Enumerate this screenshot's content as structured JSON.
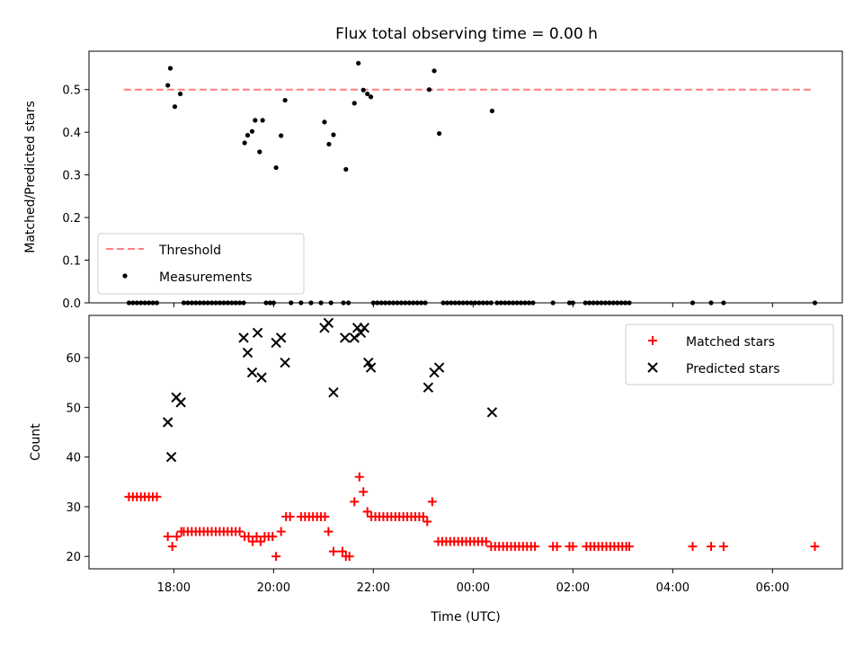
{
  "chart_data": [
    {
      "type": "scatter",
      "title": "Flux total observing time = 0.00 h",
      "xlabel": "",
      "ylabel": "Matched/Predicted stars",
      "ylim": [
        0,
        0.59
      ],
      "yticks": [
        0.0,
        0.1,
        0.2,
        0.3,
        0.4,
        0.5
      ],
      "ytick_labels": [
        "0.0",
        "0.1",
        "0.2",
        "0.3",
        "0.4",
        "0.5"
      ],
      "xlim": [
        16.3,
        31.4
      ],
      "xticks": [
        18,
        20,
        22,
        24,
        26,
        28,
        30
      ],
      "legend_placement": "lower-left",
      "threshold": {
        "name": "Threshold",
        "y": 0.5,
        "x_range": [
          17.0,
          30.8
        ],
        "color": "#ff7f7f",
        "style": "dashed"
      },
      "series": [
        {
          "name": "Measurements",
          "color": "#000000",
          "marker": "dot",
          "points": [
            [
              17.1,
              0
            ],
            [
              17.18,
              0
            ],
            [
              17.26,
              0
            ],
            [
              17.34,
              0
            ],
            [
              17.42,
              0
            ],
            [
              17.5,
              0
            ],
            [
              17.58,
              0
            ],
            [
              17.66,
              0
            ],
            [
              17.88,
              0.51
            ],
            [
              17.93,
              0.55
            ],
            [
              18.02,
              0.46
            ],
            [
              18.13,
              0.49
            ],
            [
              18.2,
              0
            ],
            [
              18.28,
              0
            ],
            [
              18.36,
              0
            ],
            [
              18.44,
              0
            ],
            [
              18.52,
              0
            ],
            [
              18.6,
              0
            ],
            [
              18.68,
              0
            ],
            [
              18.76,
              0
            ],
            [
              18.84,
              0
            ],
            [
              18.92,
              0
            ],
            [
              19.0,
              0
            ],
            [
              19.08,
              0
            ],
            [
              19.16,
              0
            ],
            [
              19.24,
              0
            ],
            [
              19.32,
              0
            ],
            [
              19.4,
              0
            ],
            [
              19.42,
              0.375
            ],
            [
              19.48,
              0.393
            ],
            [
              19.57,
              0.402
            ],
            [
              19.63,
              0.428
            ],
            [
              19.72,
              0.354
            ],
            [
              19.78,
              0.428
            ],
            [
              19.85,
              0
            ],
            [
              19.93,
              0
            ],
            [
              20.0,
              0
            ],
            [
              20.05,
              0.317
            ],
            [
              20.15,
              0.392
            ],
            [
              20.23,
              0.475
            ],
            [
              20.35,
              0
            ],
            [
              20.55,
              0
            ],
            [
              20.75,
              0
            ],
            [
              20.95,
              0
            ],
            [
              21.15,
              0
            ],
            [
              21.02,
              0.424
            ],
            [
              21.11,
              0.372
            ],
            [
              21.2,
              0.394
            ],
            [
              21.45,
              0.313
            ],
            [
              21.4,
              0
            ],
            [
              21.5,
              0
            ],
            [
              21.62,
              0.468
            ],
            [
              21.7,
              0.562
            ],
            [
              21.8,
              0.499
            ],
            [
              21.88,
              0.49
            ],
            [
              21.95,
              0.483
            ],
            [
              22.0,
              0
            ],
            [
              22.08,
              0
            ],
            [
              22.16,
              0
            ],
            [
              22.24,
              0
            ],
            [
              22.32,
              0
            ],
            [
              22.4,
              0
            ],
            [
              22.48,
              0
            ],
            [
              22.56,
              0
            ],
            [
              22.64,
              0
            ],
            [
              22.72,
              0
            ],
            [
              22.8,
              0
            ],
            [
              22.88,
              0
            ],
            [
              22.96,
              0
            ],
            [
              23.04,
              0
            ],
            [
              23.12,
              0.5
            ],
            [
              23.22,
              0.544
            ],
            [
              23.32,
              0.397
            ],
            [
              23.4,
              0
            ],
            [
              23.48,
              0
            ],
            [
              23.56,
              0
            ],
            [
              23.64,
              0
            ],
            [
              23.72,
              0
            ],
            [
              23.8,
              0
            ],
            [
              23.88,
              0
            ],
            [
              23.96,
              0
            ],
            [
              24.04,
              0
            ],
            [
              24.12,
              0
            ],
            [
              24.2,
              0
            ],
            [
              24.28,
              0
            ],
            [
              24.36,
              0
            ],
            [
              24.38,
              0.45
            ],
            [
              24.48,
              0
            ],
            [
              24.56,
              0
            ],
            [
              24.64,
              0
            ],
            [
              24.72,
              0
            ],
            [
              24.8,
              0
            ],
            [
              24.88,
              0
            ],
            [
              24.96,
              0
            ],
            [
              25.04,
              0
            ],
            [
              25.12,
              0
            ],
            [
              25.2,
              0
            ],
            [
              25.6,
              0
            ],
            [
              25.93,
              0
            ],
            [
              26.0,
              0
            ],
            [
              26.25,
              0
            ],
            [
              26.33,
              0
            ],
            [
              26.41,
              0
            ],
            [
              26.49,
              0
            ],
            [
              26.57,
              0
            ],
            [
              26.65,
              0
            ],
            [
              26.73,
              0
            ],
            [
              26.81,
              0
            ],
            [
              26.89,
              0
            ],
            [
              26.97,
              0
            ],
            [
              27.05,
              0
            ],
            [
              27.13,
              0
            ],
            [
              28.4,
              0
            ],
            [
              28.77,
              0
            ],
            [
              29.02,
              0
            ],
            [
              30.85,
              0
            ]
          ]
        }
      ]
    },
    {
      "type": "scatter",
      "title": "",
      "xlabel": "Time (UTC)",
      "ylabel": "Count",
      "ylim": [
        17.5,
        68.5
      ],
      "yticks": [
        20,
        30,
        40,
        50,
        60
      ],
      "ytick_labels": [
        "20",
        "30",
        "40",
        "50",
        "60"
      ],
      "xlim": [
        16.3,
        31.4
      ],
      "xticks": [
        18,
        20,
        22,
        24,
        26,
        28,
        30
      ],
      "xtick_labels": [
        "18:00",
        "20:00",
        "22:00",
        "00:00",
        "02:00",
        "04:00",
        "06:00"
      ],
      "legend_placement": "top-right",
      "series": [
        {
          "name": "Matched stars",
          "color": "#ff0000",
          "marker": "plus",
          "points": [
            [
              17.1,
              32
            ],
            [
              17.18,
              32
            ],
            [
              17.26,
              32
            ],
            [
              17.34,
              32
            ],
            [
              17.42,
              32
            ],
            [
              17.5,
              32
            ],
            [
              17.58,
              32
            ],
            [
              17.66,
              32
            ],
            [
              17.88,
              24
            ],
            [
              17.97,
              22
            ],
            [
              18.06,
              24
            ],
            [
              18.15,
              25
            ],
            [
              18.2,
              25
            ],
            [
              18.28,
              25
            ],
            [
              18.36,
              25
            ],
            [
              18.44,
              25
            ],
            [
              18.52,
              25
            ],
            [
              18.6,
              25
            ],
            [
              18.68,
              25
            ],
            [
              18.76,
              25
            ],
            [
              18.84,
              25
            ],
            [
              18.92,
              25
            ],
            [
              19.0,
              25
            ],
            [
              19.08,
              25
            ],
            [
              19.16,
              25
            ],
            [
              19.24,
              25
            ],
            [
              19.32,
              25
            ],
            [
              19.42,
              24
            ],
            [
              19.5,
              24
            ],
            [
              19.58,
              23
            ],
            [
              19.66,
              24
            ],
            [
              19.74,
              23
            ],
            [
              19.82,
              24
            ],
            [
              19.9,
              24
            ],
            [
              19.98,
              24
            ],
            [
              20.05,
              20
            ],
            [
              20.15,
              25
            ],
            [
              20.25,
              28
            ],
            [
              20.33,
              28
            ],
            [
              20.55,
              28
            ],
            [
              20.63,
              28
            ],
            [
              20.71,
              28
            ],
            [
              20.79,
              28
            ],
            [
              20.87,
              28
            ],
            [
              20.95,
              28
            ],
            [
              21.03,
              28
            ],
            [
              21.1,
              25
            ],
            [
              21.2,
              21
            ],
            [
              21.38,
              21
            ],
            [
              21.45,
              20
            ],
            [
              21.52,
              20
            ],
            [
              21.62,
              31
            ],
            [
              21.72,
              36
            ],
            [
              21.8,
              33
            ],
            [
              21.88,
              29
            ],
            [
              21.96,
              28
            ],
            [
              22.04,
              28
            ],
            [
              22.12,
              28
            ],
            [
              22.2,
              28
            ],
            [
              22.28,
              28
            ],
            [
              22.36,
              28
            ],
            [
              22.44,
              28
            ],
            [
              22.52,
              28
            ],
            [
              22.6,
              28
            ],
            [
              22.68,
              28
            ],
            [
              22.76,
              28
            ],
            [
              22.84,
              28
            ],
            [
              22.92,
              28
            ],
            [
              23.0,
              28
            ],
            [
              23.08,
              27
            ],
            [
              23.18,
              31
            ],
            [
              23.3,
              23
            ],
            [
              23.38,
              23
            ],
            [
              23.46,
              23
            ],
            [
              23.54,
              23
            ],
            [
              23.62,
              23
            ],
            [
              23.7,
              23
            ],
            [
              23.78,
              23
            ],
            [
              23.86,
              23
            ],
            [
              23.94,
              23
            ],
            [
              24.02,
              23
            ],
            [
              24.1,
              23
            ],
            [
              24.18,
              23
            ],
            [
              24.26,
              23
            ],
            [
              24.36,
              22
            ],
            [
              24.44,
              22
            ],
            [
              24.52,
              22
            ],
            [
              24.6,
              22
            ],
            [
              24.68,
              22
            ],
            [
              24.76,
              22
            ],
            [
              24.84,
              22
            ],
            [
              24.92,
              22
            ],
            [
              25.0,
              22
            ],
            [
              25.08,
              22
            ],
            [
              25.16,
              22
            ],
            [
              25.24,
              22
            ],
            [
              25.6,
              22
            ],
            [
              25.68,
              22
            ],
            [
              25.93,
              22
            ],
            [
              26.0,
              22
            ],
            [
              26.27,
              22
            ],
            [
              26.35,
              22
            ],
            [
              26.43,
              22
            ],
            [
              26.51,
              22
            ],
            [
              26.59,
              22
            ],
            [
              26.67,
              22
            ],
            [
              26.75,
              22
            ],
            [
              26.83,
              22
            ],
            [
              26.91,
              22
            ],
            [
              26.99,
              22
            ],
            [
              27.07,
              22
            ],
            [
              27.13,
              22
            ],
            [
              28.4,
              22
            ],
            [
              28.77,
              22
            ],
            [
              29.02,
              22
            ],
            [
              30.85,
              22
            ]
          ]
        },
        {
          "name": "Predicted stars",
          "color": "#000000",
          "marker": "x",
          "points": [
            [
              17.88,
              47
            ],
            [
              17.95,
              40
            ],
            [
              18.05,
              52
            ],
            [
              18.14,
              51
            ],
            [
              19.4,
              64
            ],
            [
              19.48,
              61
            ],
            [
              19.57,
              57
            ],
            [
              19.68,
              65
            ],
            [
              19.76,
              56
            ],
            [
              20.05,
              63
            ],
            [
              20.15,
              64
            ],
            [
              20.23,
              59
            ],
            [
              21.02,
              66
            ],
            [
              21.1,
              67
            ],
            [
              21.2,
              53
            ],
            [
              21.43,
              64
            ],
            [
              21.62,
              64
            ],
            [
              21.68,
              66
            ],
            [
              21.75,
              65
            ],
            [
              21.82,
              66
            ],
            [
              21.9,
              59
            ],
            [
              21.95,
              58
            ],
            [
              23.1,
              54
            ],
            [
              23.22,
              57
            ],
            [
              23.32,
              58
            ],
            [
              24.38,
              49
            ]
          ]
        }
      ]
    }
  ]
}
